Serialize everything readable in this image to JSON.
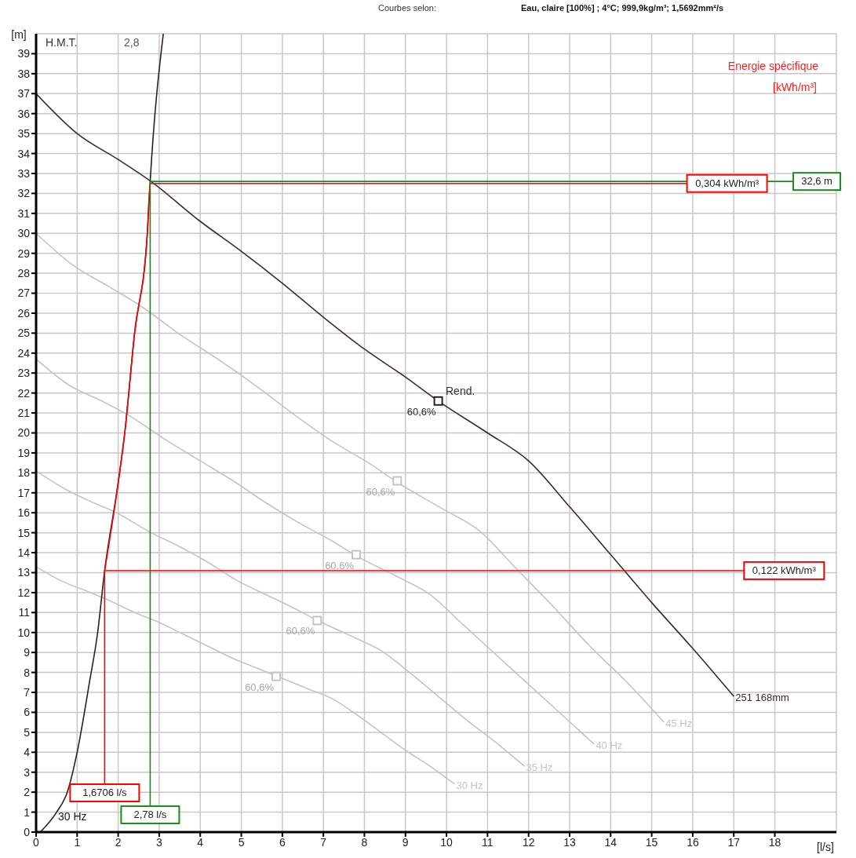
{
  "chart_data": {
    "type": "line",
    "title": "Courbes selon:",
    "subtitle": "Eau, claire [100%] ; 4°C; 999,9kg/m³; 1,5692mm²/s",
    "xlabel": "[l/s]",
    "ylabel": "[m]",
    "xlim": [
      0,
      19.5
    ],
    "xticks": [
      0,
      1,
      2,
      3,
      4,
      5,
      6,
      7,
      8,
      9,
      10,
      11,
      12,
      13,
      14,
      15,
      16,
      17,
      18
    ],
    "ylim": [
      0,
      40
    ],
    "yticks": [
      0,
      1,
      2,
      3,
      4,
      5,
      6,
      7,
      8,
      9,
      10,
      11,
      12,
      13,
      14,
      15,
      16,
      17,
      18,
      19,
      20,
      21,
      22,
      23,
      24,
      25,
      26,
      27,
      28,
      29,
      30,
      31,
      32,
      33,
      34,
      35,
      36,
      37,
      38,
      39
    ],
    "grid": true,
    "legend": false,
    "marker": "none",
    "series": [
      {
        "name": "45 Hz",
        "color": "#c4c4c4",
        "x": [
          0,
          0.9,
          1.8,
          2.52,
          3.6,
          4.5,
          5.4,
          6.3,
          7.2,
          8.1,
          8.82,
          9.9,
          10.8,
          11.7,
          12.6,
          13.5,
          14.4,
          15.3
        ],
        "values": [
          30,
          28.4,
          27.3,
          26.4,
          24.8,
          23.6,
          22.3,
          20.9,
          19.6,
          18.5,
          17.5,
          16.2,
          15.1,
          13.2,
          11.3,
          9.3,
          7.5,
          5.5
        ]
      },
      {
        "name": "40 Hz",
        "color": "#c4c4c4",
        "x": [
          0,
          0.8,
          1.6,
          2.24,
          3.2,
          4,
          4.8,
          5.6,
          6.4,
          7.2,
          7.84,
          8.8,
          9.6,
          10.4,
          11.2,
          12,
          12.8,
          13.6
        ],
        "values": [
          23.7,
          22.4,
          21.6,
          20.9,
          19.6,
          18.6,
          17.6,
          16.5,
          15.5,
          14.6,
          13.8,
          12.8,
          11.9,
          10.4,
          8.9,
          7.4,
          5.9,
          4.4
        ]
      },
      {
        "name": "35 Hz",
        "color": "#c4c4c4",
        "x": [
          0,
          0.7,
          1.4,
          1.96,
          2.8,
          3.5,
          4.2,
          4.9,
          5.6,
          6.3,
          6.86,
          7.7,
          8.4,
          9.1,
          9.8,
          10.5,
          11.2,
          11.9
        ],
        "values": [
          18.1,
          17.2,
          16.5,
          16,
          15,
          14.3,
          13.5,
          12.6,
          11.9,
          11.2,
          10.6,
          9.8,
          9.1,
          8,
          6.8,
          5.6,
          4.5,
          3.3
        ]
      },
      {
        "name": "30 Hz",
        "color": "#c4c4c4",
        "x": [
          0,
          0.6,
          1.2,
          1.68,
          2.4,
          3,
          3.6,
          4.2,
          4.8,
          5.4,
          5.88,
          6.6,
          7.2,
          7.8,
          8.4,
          9,
          9.6,
          10.2
        ],
        "values": [
          13.3,
          12.6,
          12.1,
          11.7,
          11,
          10.5,
          9.9,
          9.3,
          8.7,
          8.2,
          7.8,
          7.2,
          6.7,
          5.9,
          5,
          4.1,
          3.3,
          2.4
        ]
      },
      {
        "name": "251 168mm",
        "color": "#3a2c2c",
        "x": [
          0,
          1,
          2,
          2.8,
          4,
          5,
          6,
          7,
          8,
          9,
          9.8,
          11,
          12,
          13,
          14,
          15,
          16,
          17
        ],
        "values": [
          37,
          35,
          33.7,
          32.6,
          30.6,
          29.1,
          27.5,
          25.8,
          24.2,
          22.8,
          21.6,
          20,
          18.6,
          16.3,
          13.9,
          11.5,
          9.2,
          6.8
        ]
      },
      {
        "color": "#2a1f1f",
        "x": [
          0.1,
          0.5,
          0.76,
          1,
          1.3,
          1.5,
          1.6706,
          2,
          2.16,
          2.4,
          2.71,
          2.78,
          3.1
        ],
        "values": [
          0,
          1,
          2,
          4,
          7.5,
          10,
          13.1,
          17.5,
          20,
          25,
          30,
          32.6,
          40
        ]
      },
      {
        "color": "#ff0000",
        "x": [
          1.6706,
          1.6706,
          17.25
        ],
        "values": [
          2.4,
          13.1,
          13.1
        ]
      },
      {
        "color": "#ff0000",
        "x": [
          1.6706,
          2,
          2.16,
          2.4,
          2.71,
          2.78,
          15.86
        ],
        "values": [
          13.1,
          17.5,
          20,
          25,
          30,
          32.5,
          32.5
        ]
      },
      {
        "color": "#1a8a1a",
        "x": [
          2.78,
          2.78,
          18.45
        ],
        "values": [
          1.3,
          32.6,
          32.6
        ]
      },
      {
        "type": "scatter",
        "marker": "square",
        "colors": [
          "#2a1f1f",
          "#c4c4c4",
          "#c4c4c4",
          "#c4c4c4",
          "#c4c4c4"
        ],
        "x": [
          9.8,
          8.8,
          7.8,
          6.85,
          5.85
        ],
        "values": [
          21.6,
          17.6,
          13.9,
          10.6,
          7.8
        ]
      }
    ],
    "annotations": [
      "H.M.T.",
      "2,8",
      "Energie spécifique",
      "[kWh/m³]",
      "Rend.",
      "30 Hz",
      {
        "text": "1,6706 l/s",
        "x": 1.6706,
        "y": 2.4
      },
      {
        "text": "2,78 l/s",
        "x": 2.78,
        "y": 1.3
      },
      {
        "text": "0,122 kWh/m³",
        "x": 17.25,
        "y": 13.1
      },
      {
        "text": "0,304 kWh/m³",
        "x": 15.86,
        "y": 32.5
      },
      {
        "text": "32,6 m",
        "x": 18.45,
        "y": 32.6
      },
      {
        "text": "60,6%",
        "x": 9.8,
        "y": 21.6
      },
      {
        "text": "60,6%",
        "x": 8.8,
        "y": 17.6
      },
      {
        "text": "60,6%",
        "x": 7.8,
        "y": 13.9
      },
      {
        "text": "60,6%",
        "x": 6.85,
        "y": 10.6
      },
      {
        "text": "60,6%",
        "x": 5.85,
        "y": 7.8
      }
    ]
  }
}
